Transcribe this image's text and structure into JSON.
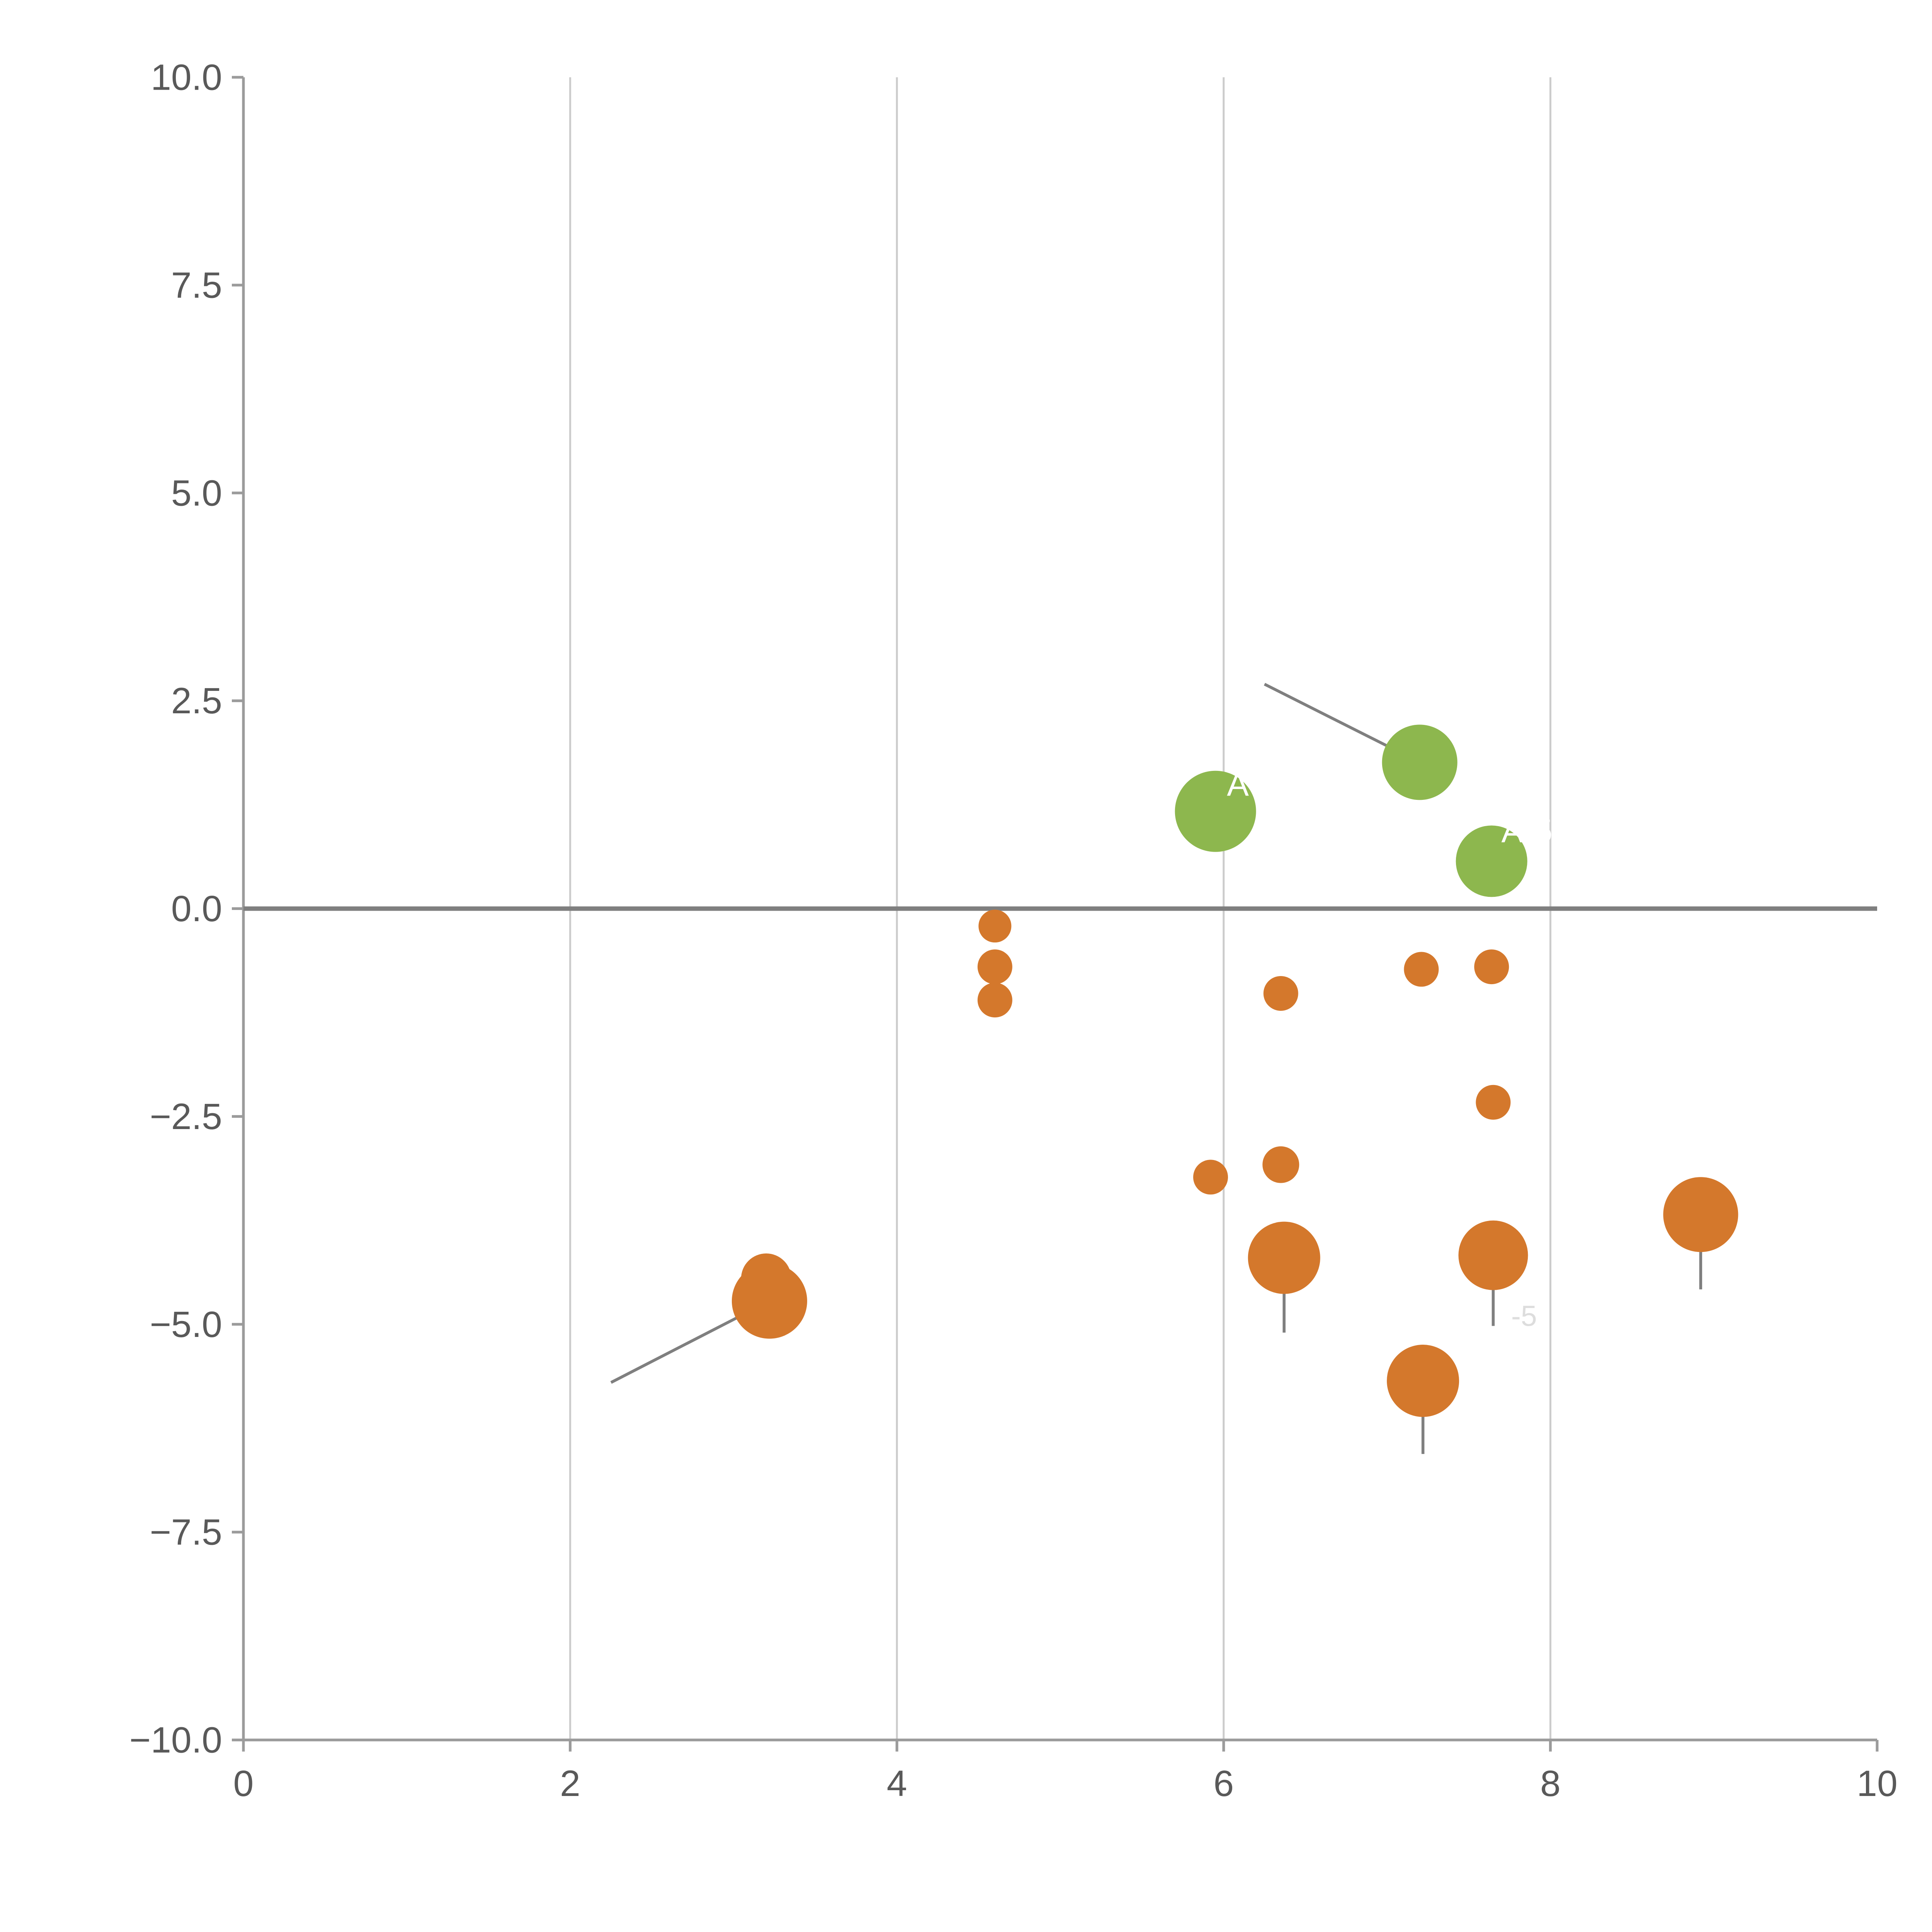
{
  "chart": {
    "background_color": "#ffffff",
    "axis_color": "#9b9b9b",
    "grid_color": "#cccccc",
    "zero_line_color": "#7f7f7f",
    "connector_color": "#7f7f7f",
    "tick_label_color": "#595959"
  },
  "chart_data": {
    "type": "scatter",
    "title": "",
    "xlabel": "",
    "ylabel": "",
    "xlim": [
      0,
      10
    ],
    "ylim": [
      -10,
      10
    ],
    "grid": "vertical-only",
    "legend": "none",
    "x_ticks": [
      {
        "value": 0,
        "label": "0"
      },
      {
        "value": 2,
        "label": "2"
      },
      {
        "value": 4,
        "label": "4"
      },
      {
        "value": 6,
        "label": "6"
      },
      {
        "value": 8,
        "label": "8"
      },
      {
        "value": 10,
        "label": "10"
      }
    ],
    "y_ticks": [
      {
        "value": 10,
        "label": "10.0"
      },
      {
        "value": 7.5,
        "label": "7.5"
      },
      {
        "value": 5,
        "label": "5.0"
      },
      {
        "value": 2.5,
        "label": "2.5"
      },
      {
        "value": 0,
        "label": "0.0"
      },
      {
        "value": -2.5,
        "label": "−2.5"
      },
      {
        "value": -5,
        "label": "−5.0"
      },
      {
        "value": -7.5,
        "label": "−7.5"
      },
      {
        "value": -10,
        "label": "−10.0"
      }
    ],
    "grid_x_values": [
      2,
      4,
      6,
      8
    ],
    "zero_line_y": 0,
    "series": [
      {
        "name": "positive-bubbles",
        "color": "#8db74e",
        "points": [
          {
            "x": 5.95,
            "y": 1.17,
            "r": 21
          },
          {
            "x": 7.2,
            "y": 1.76,
            "r": 19.5
          },
          {
            "x": 7.64,
            "y": 0.57,
            "r": 18.5
          }
        ]
      },
      {
        "name": "negative-bubbles",
        "color": "#d4782c",
        "points": [
          {
            "x": 4.6,
            "y": -0.21,
            "r": 8.5
          },
          {
            "x": 4.6,
            "y": -0.7,
            "r": 9
          },
          {
            "x": 4.6,
            "y": -1.1,
            "r": 9
          },
          {
            "x": 6.35,
            "y": -1.02,
            "r": 9
          },
          {
            "x": 7.21,
            "y": -0.73,
            "r": 9
          },
          {
            "x": 7.64,
            "y": -0.7,
            "r": 9
          },
          {
            "x": 7.65,
            "y": -2.33,
            "r": 9
          },
          {
            "x": 5.92,
            "y": -3.23,
            "r": 9
          },
          {
            "x": 6.35,
            "y": -3.08,
            "r": 9.5
          },
          {
            "x": 6.37,
            "y": -4.2,
            "r": 18.7
          },
          {
            "x": 7.65,
            "y": -4.17,
            "r": 18
          },
          {
            "x": 8.92,
            "y": -3.68,
            "r": 19.4
          },
          {
            "x": 7.22,
            "y": -5.68,
            "r": 18.7
          },
          {
            "x": 3.2,
            "y": -4.45,
            "r": 13
          },
          {
            "x": 3.22,
            "y": -4.72,
            "r": 19.5
          }
        ]
      }
    ],
    "stems": [
      {
        "x": 6.37,
        "y1": -4.2,
        "y2": -5.1
      },
      {
        "x": 7.65,
        "y1": -4.17,
        "y2": -5.02
      },
      {
        "x": 8.92,
        "y1": -3.68,
        "y2": -4.58
      },
      {
        "x": 7.22,
        "y1": -5.68,
        "y2": -6.56
      }
    ],
    "connectors": [
      {
        "x1": 6.25,
        "y1": 2.7,
        "x2": 7.2,
        "y2": 1.76
      },
      {
        "x1": 2.25,
        "y1": -5.7,
        "x2": 3.22,
        "y2": -4.72
      }
    ],
    "point_labels": [
      {
        "text": "A",
        "x": 6.02,
        "y": 1.36,
        "color": "#ffffff",
        "size": 17
      },
      {
        "text": "A-5",
        "x": 7.7,
        "y": 0.8,
        "color": "#ffffff",
        "size": 17
      },
      {
        "text": "-5",
        "x": 7.76,
        "y": -5.02,
        "color": "#dddddd",
        "size": 15
      }
    ]
  }
}
